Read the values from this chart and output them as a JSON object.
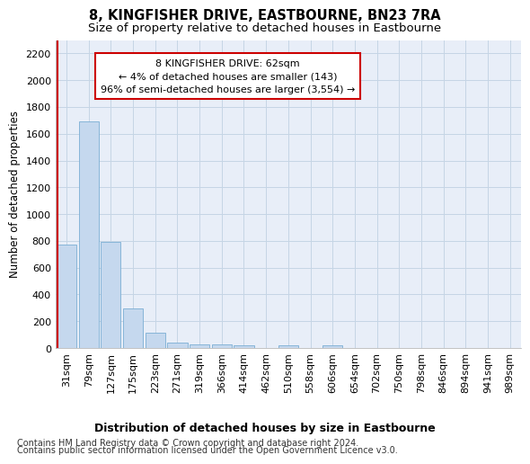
{
  "title": "8, KINGFISHER DRIVE, EASTBOURNE, BN23 7RA",
  "subtitle": "Size of property relative to detached houses in Eastbourne",
  "xlabel": "Distribution of detached houses by size in Eastbourne",
  "ylabel": "Number of detached properties",
  "categories": [
    "31sqm",
    "79sqm",
    "127sqm",
    "175sqm",
    "223sqm",
    "271sqm",
    "319sqm",
    "366sqm",
    "414sqm",
    "462sqm",
    "510sqm",
    "558sqm",
    "606sqm",
    "654sqm",
    "702sqm",
    "750sqm",
    "798sqm",
    "846sqm",
    "894sqm",
    "941sqm",
    "989sqm"
  ],
  "values": [
    770,
    1690,
    795,
    295,
    115,
    42,
    30,
    27,
    22,
    0,
    20,
    0,
    20,
    0,
    0,
    0,
    0,
    0,
    0,
    0,
    0
  ],
  "bar_color": "#c5d8ee",
  "bar_edge_color": "#7aaed4",
  "annotation_box_text": "8 KINGFISHER DRIVE: 62sqm\n← 4% of detached houses are smaller (143)\n96% of semi-detached houses are larger (3,554) →",
  "annotation_box_color": "#ffffff",
  "annotation_box_edge_color": "#cc0000",
  "vline_color": "#cc0000",
  "vline_x": -0.42,
  "ylim": [
    0,
    2300
  ],
  "yticks": [
    0,
    200,
    400,
    600,
    800,
    1000,
    1200,
    1400,
    1600,
    1800,
    2000,
    2200
  ],
  "grid_color": "#c5d5e5",
  "bg_color": "#e8eef8",
  "footer_line1": "Contains HM Land Registry data © Crown copyright and database right 2024.",
  "footer_line2": "Contains public sector information licensed under the Open Government Licence v3.0.",
  "title_fontsize": 10.5,
  "subtitle_fontsize": 9.5,
  "xlabel_fontsize": 9,
  "ylabel_fontsize": 8.5,
  "tick_fontsize": 8,
  "annotation_fontsize": 8,
  "footer_fontsize": 7
}
